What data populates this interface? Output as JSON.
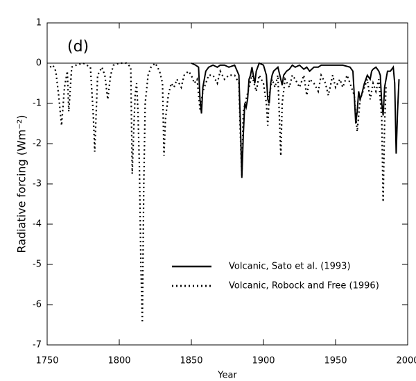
{
  "chart_data": {
    "type": "line",
    "annotation": "(d)",
    "xlabel": "Year",
    "ylabel": "Radiative forcing (Wm⁻²)",
    "xlim": [
      1750,
      2000
    ],
    "xticks": [
      1750,
      1800,
      1850,
      1900,
      1950,
      2000
    ],
    "ylim": [
      -7,
      1
    ],
    "yticks": [
      -7,
      -6,
      -5,
      -4,
      -3,
      -2,
      -1,
      0,
      1
    ],
    "hline": 0,
    "legend": "lower right",
    "series": [
      {
        "name": "Volcanic, Sato et al. (1993)",
        "color": "#000000",
        "dash": "solid",
        "x": [
          1850,
          1853,
          1855,
          1856,
          1857,
          1858,
          1860,
          1862,
          1865,
          1868,
          1870,
          1873,
          1876,
          1880,
          1883,
          1884,
          1885,
          1886,
          1887,
          1888,
          1889,
          1890,
          1891,
          1892,
          1893,
          1894,
          1895,
          1896,
          1897,
          1900,
          1902,
          1903,
          1904,
          1905,
          1906,
          1907,
          1910,
          1912,
          1913,
          1914,
          1916,
          1918,
          1920,
          1922,
          1925,
          1928,
          1930,
          1932,
          1935,
          1938,
          1940,
          1945,
          1950,
          1955,
          1960,
          1962,
          1963,
          1964,
          1965,
          1966,
          1967,
          1968,
          1970,
          1972,
          1974,
          1975,
          1976,
          1978,
          1980,
          1981,
          1982,
          1983,
          1984,
          1986,
          1988,
          1990,
          1991,
          1992,
          1993,
          1994
        ],
        "values": [
          0,
          -0.05,
          -0.1,
          -0.9,
          -1.25,
          -0.6,
          -0.2,
          -0.1,
          -0.05,
          -0.1,
          -0.05,
          -0.05,
          -0.1,
          -0.05,
          -0.3,
          -1.5,
          -2.85,
          -1.8,
          -1.0,
          -1.1,
          -0.9,
          -0.4,
          -0.3,
          -0.1,
          -0.3,
          -0.5,
          -0.2,
          -0.1,
          0,
          -0.05,
          -0.3,
          -0.9,
          -1.0,
          -0.5,
          -0.3,
          -0.2,
          -0.1,
          -0.4,
          -0.55,
          -0.3,
          -0.2,
          -0.15,
          -0.05,
          -0.1,
          -0.05,
          -0.15,
          -0.1,
          -0.2,
          -0.1,
          -0.1,
          -0.05,
          -0.05,
          -0.05,
          -0.05,
          -0.1,
          -0.2,
          -0.8,
          -1.5,
          -1.2,
          -0.7,
          -0.9,
          -0.8,
          -0.5,
          -0.3,
          -0.4,
          -0.2,
          -0.15,
          -0.1,
          -0.2,
          -0.3,
          -1.0,
          -1.3,
          -0.6,
          -0.2,
          -0.2,
          -0.1,
          -0.5,
          -2.25,
          -1.2,
          -0.4
        ]
      },
      {
        "name": "Volcanic, Robock and Free (1996)",
        "color": "#000000",
        "dash": "dotted",
        "x": [
          1752,
          1754,
          1756,
          1758,
          1760,
          1762,
          1764,
          1765,
          1767,
          1770,
          1775,
          1780,
          1782,
          1783,
          1785,
          1788,
          1790,
          1792,
          1794,
          1796,
          1800,
          1805,
          1808,
          1809,
          1810,
          1811,
          1812,
          1813,
          1814,
          1815,
          1816,
          1817,
          1818,
          1820,
          1822,
          1825,
          1828,
          1830,
          1831,
          1832,
          1834,
          1836,
          1838,
          1840,
          1843,
          1845,
          1848,
          1850,
          1852,
          1854,
          1856,
          1858,
          1860,
          1862,
          1865,
          1868,
          1870,
          1873,
          1876,
          1880,
          1883,
          1884,
          1885,
          1886,
          1888,
          1890,
          1892,
          1895,
          1897,
          1900,
          1902,
          1903,
          1904,
          1906,
          1908,
          1910,
          1912,
          1913,
          1915,
          1918,
          1920,
          1922,
          1925,
          1928,
          1930,
          1932,
          1935,
          1938,
          1940,
          1943,
          1945,
          1948,
          1950,
          1953,
          1955,
          1958,
          1960,
          1963,
          1964,
          1965,
          1967,
          1970,
          1972,
          1974,
          1976,
          1978,
          1980,
          1982,
          1983,
          1984,
          1985
        ],
        "values": [
          -0.1,
          -0.05,
          -0.2,
          -0.8,
          -1.55,
          -0.6,
          -0.2,
          -1.2,
          -0.1,
          -0.05,
          0,
          -0.1,
          -1.3,
          -2.2,
          -0.3,
          -0.1,
          -0.3,
          -0.9,
          -0.3,
          -0.05,
          0,
          0,
          -0.1,
          -2.75,
          -1.7,
          -0.8,
          -0.5,
          -1.2,
          -2.6,
          -5.0,
          -6.45,
          -3.0,
          -1.0,
          -0.3,
          -0.1,
          0,
          -0.2,
          -0.5,
          -2.3,
          -1.4,
          -0.8,
          -0.5,
          -0.6,
          -0.4,
          -0.6,
          -0.3,
          -0.2,
          -0.3,
          -0.5,
          -0.4,
          -1.15,
          -0.7,
          -0.5,
          -0.3,
          -0.3,
          -0.5,
          -0.2,
          -0.4,
          -0.3,
          -0.3,
          -0.5,
          -1.8,
          -2.8,
          -1.2,
          -0.9,
          -0.6,
          -0.3,
          -0.7,
          -0.3,
          -0.5,
          -1.0,
          -1.55,
          -0.8,
          -0.4,
          -0.6,
          -0.3,
          -2.3,
          -1.0,
          -0.4,
          -0.6,
          -0.3,
          -0.4,
          -0.6,
          -0.3,
          -0.8,
          -0.4,
          -0.5,
          -0.7,
          -0.3,
          -0.5,
          -0.8,
          -0.3,
          -0.6,
          -0.4,
          -0.6,
          -0.3,
          -0.5,
          -0.8,
          -1.3,
          -1.7,
          -0.9,
          -0.6,
          -0.4,
          -0.9,
          -0.5,
          -0.7,
          -0.4,
          -1.4,
          -3.45,
          -1.5,
          -0.6
        ]
      }
    ]
  }
}
